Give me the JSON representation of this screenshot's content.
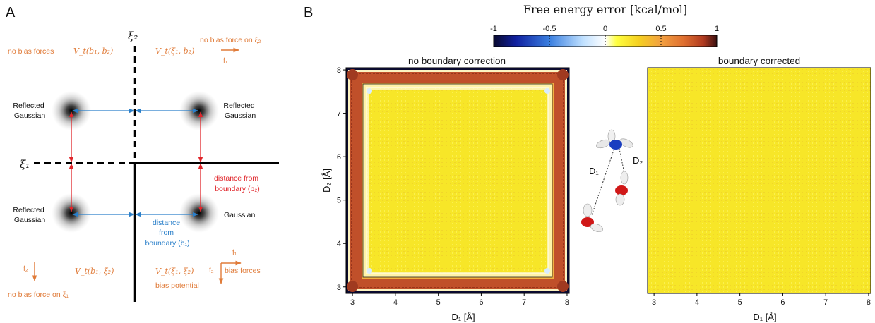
{
  "panel_a": {
    "label": "A",
    "xi2": "ξ₂",
    "xi1": "ξ₁",
    "no_bias_forces": "no bias forces",
    "vt_b1b2": "V_t(b₁, b₂)",
    "vt_xi1b2": "V_t(ξ₁, b₂)",
    "no_bias_force_xi2": "no bias force on ξ₂",
    "f1_top": "f₁",
    "reflected_gaussian_tl": [
      "Reflected",
      "Gaussian"
    ],
    "reflected_gaussian_tr": [
      "Reflected",
      "Gaussian"
    ],
    "reflected_gaussian_bl": [
      "Reflected",
      "Gaussian"
    ],
    "gaussian_br": "Gaussian",
    "distance_b2": [
      "distance from",
      "boundary (b₂)"
    ],
    "distance_b1": [
      "distance",
      "from",
      "boundary (b₁)"
    ],
    "f2_left": "f₂",
    "no_bias_force_xi1": "no bias force on ξ₁",
    "vt_b1xi2": "V_t(b₁, ξ₂)",
    "vt_xi1xi2": "V_t(ξ₁, ξ₂)",
    "bias_potential": "bias potential",
    "f1_bottom": "f₁",
    "f2_bottom": "f₂",
    "bias_forces": "bias forces"
  },
  "panel_b": {
    "label": "B",
    "colorbar": {
      "title": "Free energy error [kcal/mol]",
      "ticks": [
        "-1",
        "-0.5",
        "0",
        "0.5",
        "1"
      ],
      "range": [
        -1,
        1
      ],
      "colors": [
        "#0a0a2e",
        "#1020a0",
        "#3a7fe0",
        "#bfe0ff",
        "#ffffff",
        "#ffff40",
        "#f5d020",
        "#f2a040",
        "#e07030",
        "#b03a20",
        "#3a1010"
      ]
    },
    "left_plot": {
      "title": "no boundary correction",
      "x_ticks": [
        "3",
        "4",
        "5",
        "6",
        "7",
        "8"
      ],
      "y_ticks": [
        "3",
        "4",
        "5",
        "6",
        "7",
        "8"
      ],
      "xlim": [
        2.85,
        8.05
      ],
      "ylim": [
        2.85,
        8.05
      ],
      "xlabel": "D₁ [Å]",
      "ylabel": "D₂ [Å]"
    },
    "right_plot": {
      "title": "boundary corrected",
      "x_ticks": [
        "3",
        "4",
        "5",
        "6",
        "7",
        "8"
      ],
      "xlim": [
        2.85,
        8.05
      ],
      "xlabel": "D₁ [Å]"
    },
    "molecule_labels": {
      "d1": "D₁",
      "d2": "D₂"
    }
  }
}
